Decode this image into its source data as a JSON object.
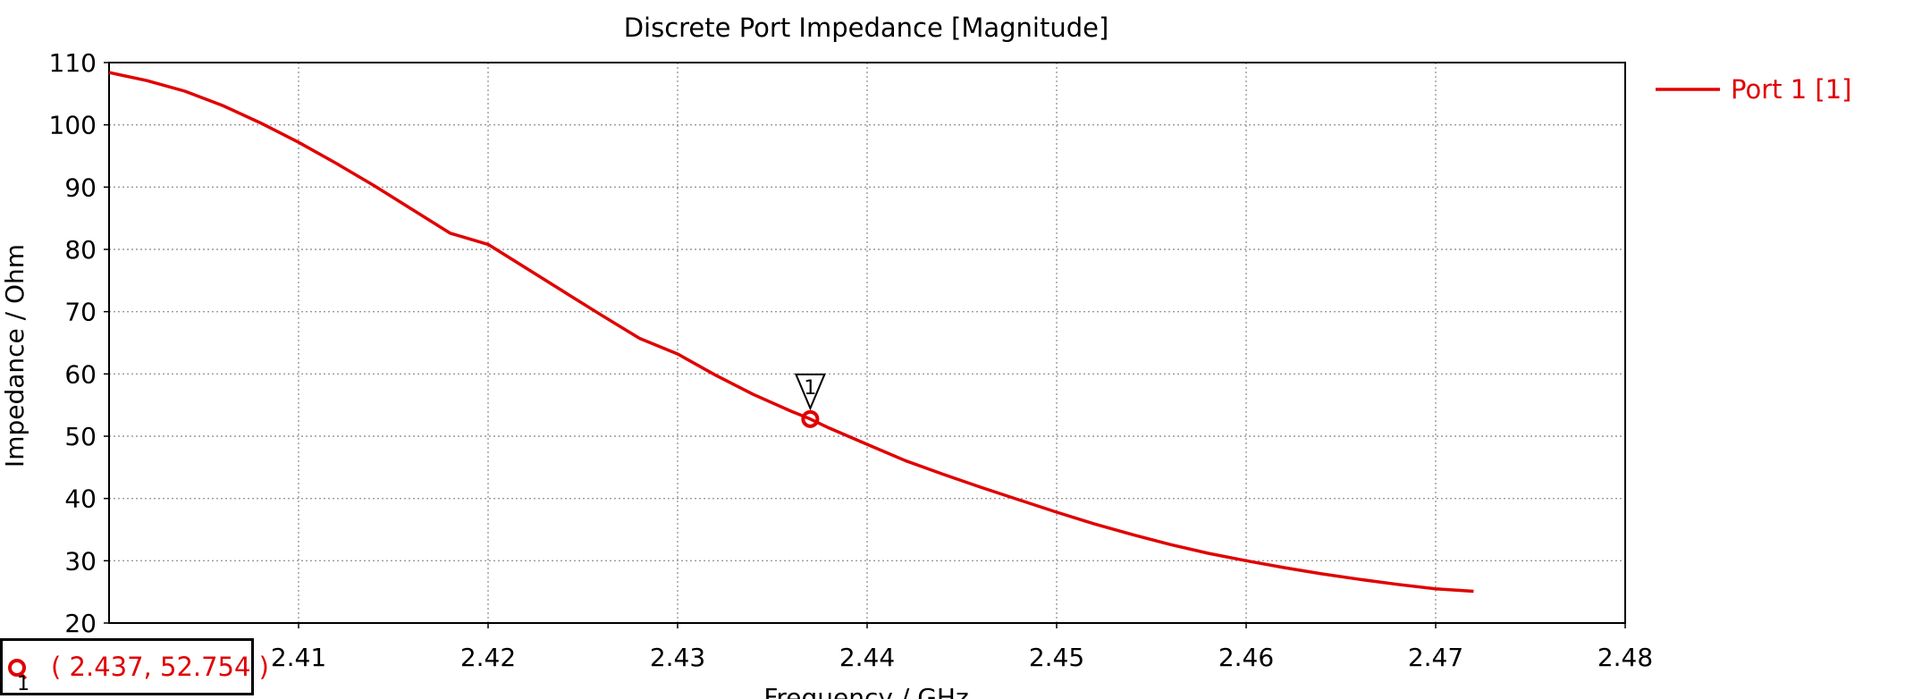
{
  "chart_data": {
    "type": "line",
    "title": "Discrete Port Impedance [Magnitude]",
    "xlabel": "Frequency / GHz",
    "ylabel": "Impedance / Ohm",
    "xlim": [
      2.4,
      2.48
    ],
    "ylim": [
      20,
      110
    ],
    "xticks": [
      2.41,
      2.42,
      2.43,
      2.44,
      2.45,
      2.46,
      2.47,
      2.48
    ],
    "yticks": [
      20,
      30,
      40,
      50,
      60,
      70,
      80,
      90,
      100,
      110
    ],
    "grid": true,
    "legend_position": "top-right",
    "series": [
      {
        "name": "Port 1 [1]",
        "color": "#e00000",
        "x": [
          2.4,
          2.402,
          2.404,
          2.406,
          2.408,
          2.41,
          2.412,
          2.414,
          2.416,
          2.418,
          2.42,
          2.422,
          2.424,
          2.426,
          2.428,
          2.43,
          2.432,
          2.434,
          2.436,
          2.437,
          2.438,
          2.44,
          2.442,
          2.444,
          2.446,
          2.448,
          2.45,
          2.452,
          2.454,
          2.456,
          2.458,
          2.46,
          2.462,
          2.464,
          2.466,
          2.468,
          2.47,
          2.472
        ],
        "y": [
          108.4,
          107.1,
          105.4,
          103.1,
          100.3,
          97.2,
          93.8,
          90.2,
          86.4,
          82.6,
          80.8,
          77.0,
          73.2,
          69.4,
          65.7,
          63.2,
          59.8,
          56.7,
          54.0,
          52.754,
          51.3,
          48.7,
          46.1,
          43.9,
          41.8,
          39.8,
          37.8,
          35.9,
          34.2,
          32.6,
          31.2,
          30.0,
          28.9,
          27.9,
          27.0,
          26.2,
          25.5,
          25.1
        ]
      }
    ],
    "markers": [
      {
        "id": "1",
        "x": 2.437,
        "y": 52.754
      }
    ]
  },
  "marker_readout": {
    "index": "1",
    "text": "( 2.437, 52.754 )"
  }
}
